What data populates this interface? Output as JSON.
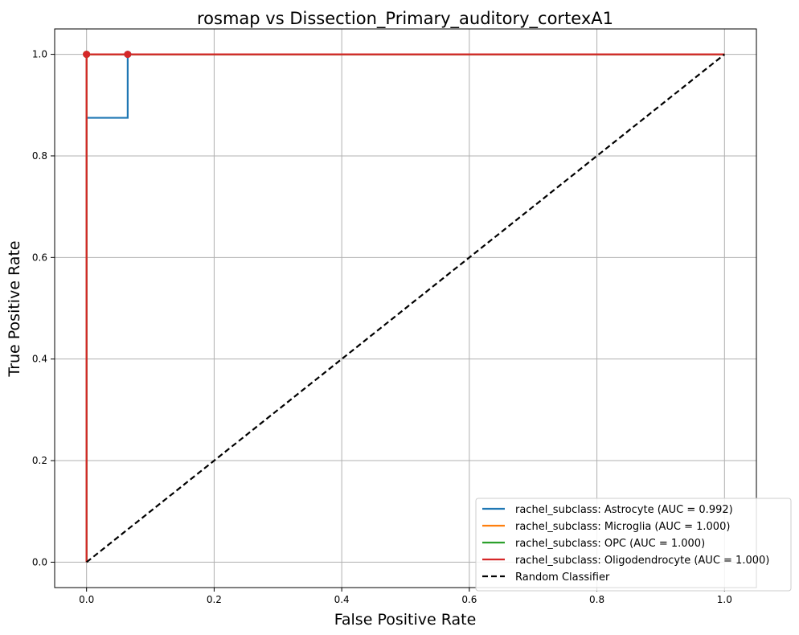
{
  "chart_data": {
    "type": "line",
    "title": "rosmap vs Dissection_Primary_auditory_cortexA1",
    "xlabel": "False Positive Rate",
    "ylabel": "True Positive Rate",
    "xlim": [
      -0.05,
      1.05
    ],
    "ylim": [
      -0.05,
      1.05
    ],
    "xticks": [
      "0.0",
      "0.2",
      "0.4",
      "0.6",
      "0.8",
      "1.0"
    ],
    "yticks": [
      "0.0",
      "0.2",
      "0.4",
      "0.6",
      "0.8",
      "1.0"
    ],
    "grid": true,
    "legend_position": "bottom-right",
    "series": [
      {
        "name": "rachel_subclass: Astrocyte (AUC = 0.992)",
        "color": "#1f77b4",
        "style": "solid",
        "points": [
          [
            0,
            0
          ],
          [
            0,
            0.875
          ],
          [
            0.0645,
            0.875
          ],
          [
            0.0645,
            1.0
          ],
          [
            1.0,
            1.0
          ]
        ],
        "markers": [
          [
            0.0645,
            1.0
          ]
        ]
      },
      {
        "name": "rachel_subclass: Microglia (AUC = 1.000)",
        "color": "#ff7f0e",
        "style": "solid",
        "points": [
          [
            0,
            0
          ],
          [
            0,
            1.0
          ],
          [
            1.0,
            1.0
          ]
        ],
        "markers": [
          [
            0,
            1.0
          ]
        ]
      },
      {
        "name": "rachel_subclass: OPC (AUC = 1.000)",
        "color": "#2ca02c",
        "style": "solid",
        "points": [
          [
            0,
            0
          ],
          [
            0,
            1.0
          ],
          [
            1.0,
            1.0
          ]
        ],
        "markers": [
          [
            0,
            1.0
          ]
        ]
      },
      {
        "name": "rachel_subclass: Oligodendrocyte (AUC = 1.000)",
        "color": "#d62728",
        "style": "solid",
        "points": [
          [
            0,
            0
          ],
          [
            0,
            1.0
          ],
          [
            1.0,
            1.0
          ]
        ],
        "markers": [
          [
            0,
            1.0
          ],
          [
            0.0645,
            1.0
          ]
        ]
      },
      {
        "name": "Random Classifier",
        "color": "#000000",
        "style": "dashed",
        "points": [
          [
            0,
            0
          ],
          [
            1.0,
            1.0
          ]
        ],
        "markers": []
      }
    ]
  }
}
